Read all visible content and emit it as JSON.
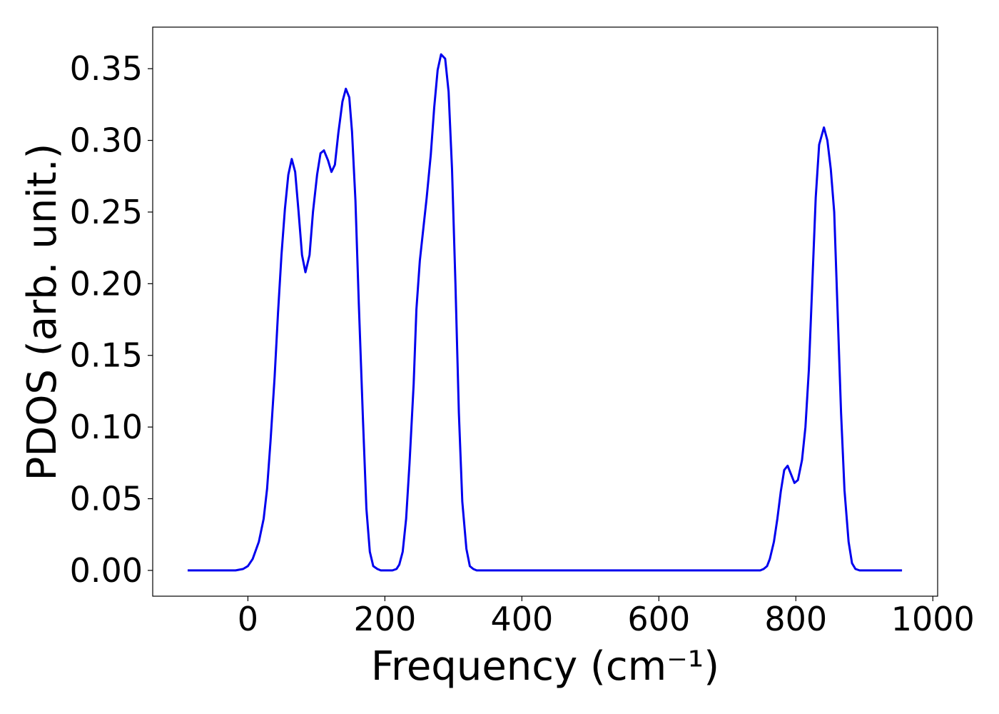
{
  "chart_data": {
    "type": "line",
    "xlabel": "Frequency (cm⁻¹)",
    "ylabel": "PDOS (arb. unit.)",
    "x": [
      -88,
      -18,
      -7,
      0,
      7,
      16,
      23,
      28,
      33,
      39,
      44,
      49,
      54,
      59,
      64,
      69,
      74,
      79,
      84,
      90,
      95,
      101,
      106,
      111,
      117,
      122,
      127,
      132,
      138,
      143,
      148,
      152,
      157,
      162,
      168,
      173,
      178,
      183,
      189,
      194,
      211,
      217,
      221,
      226,
      231,
      236,
      242,
      246,
      251,
      256,
      261,
      267,
      272,
      277,
      282,
      288,
      293,
      298,
      303,
      308,
      313,
      319,
      324,
      329,
      334,
      748,
      753,
      758,
      762,
      768,
      773,
      778,
      783,
      788,
      793,
      798,
      803,
      809,
      814,
      819,
      824,
      829,
      834,
      841,
      846,
      851,
      856,
      861,
      866,
      871,
      877,
      882,
      887,
      893,
      955
    ],
    "series": [
      {
        "color": "#0000ee",
        "values": [
          0,
          0,
          0.001,
          0.003,
          0.008,
          0.02,
          0.036,
          0.057,
          0.09,
          0.135,
          0.18,
          0.22,
          0.252,
          0.276,
          0.287,
          0.278,
          0.25,
          0.22,
          0.208,
          0.22,
          0.25,
          0.276,
          0.291,
          0.293,
          0.286,
          0.278,
          0.283,
          0.305,
          0.327,
          0.336,
          0.33,
          0.306,
          0.258,
          0.185,
          0.105,
          0.043,
          0.013,
          0.003,
          0.001,
          0,
          0,
          0.001,
          0.004,
          0.013,
          0.036,
          0.075,
          0.13,
          0.182,
          0.216,
          0.238,
          0.26,
          0.29,
          0.323,
          0.349,
          0.36,
          0.357,
          0.334,
          0.28,
          0.2,
          0.11,
          0.048,
          0.015,
          0.003,
          0.001,
          0,
          0,
          0.001,
          0.003,
          0.008,
          0.02,
          0.036,
          0.055,
          0.07,
          0.073,
          0.067,
          0.061,
          0.063,
          0.077,
          0.1,
          0.14,
          0.2,
          0.26,
          0.297,
          0.309,
          0.3,
          0.28,
          0.25,
          0.18,
          0.11,
          0.056,
          0.02,
          0.005,
          0.001,
          0,
          0
        ]
      }
    ],
    "xlim": [
      -139,
      1007
    ],
    "ylim": [
      -0.018,
      0.379
    ],
    "xticks": [
      0,
      200,
      400,
      600,
      800,
      1000
    ],
    "yticks": [
      {
        "value": 0,
        "label": "0.00"
      },
      {
        "value": 0.05,
        "label": "0.05"
      },
      {
        "value": 0.1,
        "label": "0.10"
      },
      {
        "value": 0.15,
        "label": "0.15"
      },
      {
        "value": 0.2,
        "label": "0.20"
      },
      {
        "value": 0.25,
        "label": "0.25"
      },
      {
        "value": 0.3,
        "label": "0.30"
      },
      {
        "value": 0.35,
        "label": "0.35"
      }
    ],
    "grid": false
  }
}
